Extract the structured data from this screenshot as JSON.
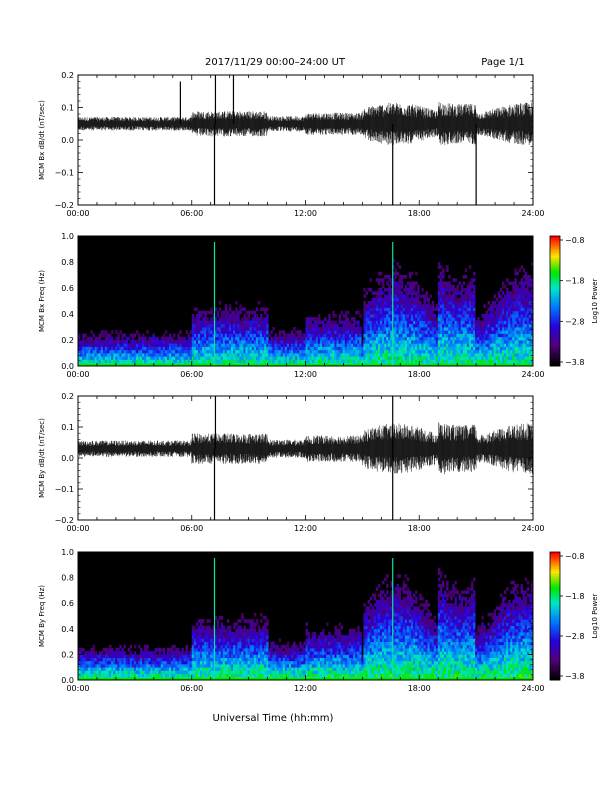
{
  "header": {
    "title": "2017/11/29  00:00–24:00 UT",
    "page": "Page 1/1"
  },
  "xaxis": {
    "title": "Universal Time (hh:mm)",
    "ticks": [
      "00:00",
      "06:00",
      "12:00",
      "18:00",
      "24:00"
    ]
  },
  "chart_data": [
    {
      "type": "line",
      "ylabel": "MCM Bx dB/dt (nT/sec)",
      "xlim": [
        0,
        24
      ],
      "ylim": [
        -0.2,
        0.2
      ],
      "yticks": [
        "0.2",
        "0.1",
        "0.0",
        "−0.1",
        "−0.2"
      ],
      "color": "#000000",
      "baseline": 0.05,
      "spikes": [
        {
          "hour": 5.4,
          "y": 0.18
        },
        {
          "hour": 7.2,
          "y": -0.2
        },
        {
          "hour": 7.25,
          "y": 0.2
        },
        {
          "hour": 8.2,
          "y": 0.2
        },
        {
          "hour": 16.6,
          "y": -0.2
        },
        {
          "hour": 21.0,
          "y": -0.2
        }
      ]
    },
    {
      "type": "heatmap",
      "ylabel": "MCM Bx Freq (Hz)",
      "xlim": [
        0,
        24
      ],
      "ylim": [
        0.0,
        1.0
      ],
      "yticks": [
        "1.0",
        "0.8",
        "0.6",
        "0.4",
        "0.2",
        "0.0"
      ],
      "colorbar": {
        "label": "Log10 Power",
        "ticks": [
          "−0.8",
          "−1.8",
          "−2.8",
          "−3.8"
        ],
        "range": [
          -3.8,
          -0.8
        ]
      },
      "vertical_lines": [
        7.2,
        16.6
      ]
    },
    {
      "type": "line",
      "ylabel": "MCM By dB/dt (nT/sec)",
      "xlim": [
        0,
        24
      ],
      "ylim": [
        -0.2,
        0.2
      ],
      "yticks": [
        "0.2",
        "0.1",
        "0.0",
        "−0.1",
        "−0.2"
      ],
      "color": "#000000",
      "baseline": 0.03,
      "spikes": [
        {
          "hour": 7.2,
          "y": -0.2
        },
        {
          "hour": 7.25,
          "y": 0.2
        },
        {
          "hour": 16.6,
          "y": -0.2
        },
        {
          "hour": 16.6,
          "y": 0.2
        }
      ]
    },
    {
      "type": "heatmap",
      "ylabel": "MCM By Freq (Hz)",
      "xlim": [
        0,
        24
      ],
      "ylim": [
        0.0,
        1.0
      ],
      "yticks": [
        "1.0",
        "0.8",
        "0.6",
        "0.4",
        "0.2",
        "0.0"
      ],
      "colorbar": {
        "label": "Log10 Power",
        "ticks": [
          "−0.8",
          "−1.8",
          "−2.8",
          "−3.8"
        ],
        "range": [
          -3.8,
          -0.8
        ]
      },
      "vertical_lines": [
        7.2,
        16.6
      ]
    }
  ]
}
